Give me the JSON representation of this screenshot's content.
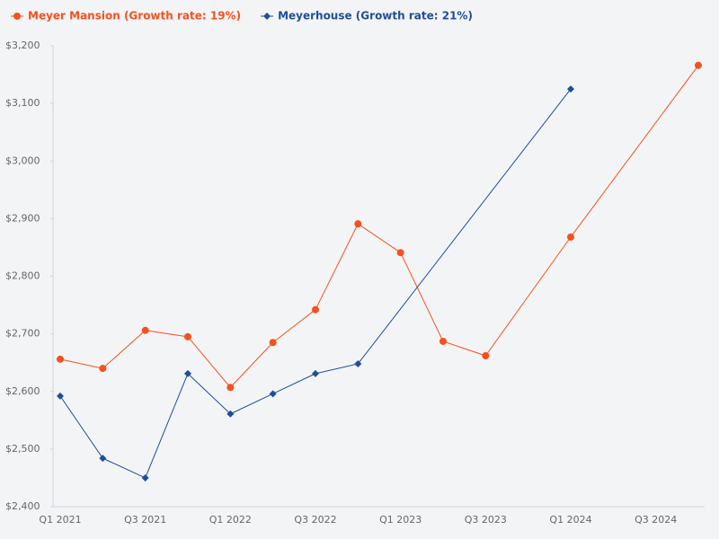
{
  "chart_data": {
    "type": "line",
    "categories": [
      "Q1 2021",
      null,
      "Q3 2021",
      null,
      "Q1 2022",
      null,
      "Q3 2022",
      null,
      "Q1 2023",
      null,
      "Q3 2023",
      null,
      "Q1 2024",
      null,
      "Q3 2024",
      null
    ],
    "series": [
      {
        "name": "Meyer Mansion (Growth rate: 19%)",
        "color": "#f4511e",
        "marker": "circle",
        "values": [
          2656,
          2640,
          2706,
          2695,
          2607,
          2685,
          2742,
          2891,
          2841,
          2687,
          2662,
          null,
          2868,
          null,
          null,
          3166
        ]
      },
      {
        "name": "Meyerhouse (Growth rate: 21%)",
        "color": "#1f4e99",
        "marker": "diamond",
        "values": [
          2592,
          2484,
          2450,
          2631,
          2561,
          2596,
          2631,
          2648,
          null,
          null,
          null,
          null,
          3125,
          null,
          null,
          null
        ]
      }
    ],
    "connect_gaps": true,
    "ylim": [
      2400,
      3200
    ],
    "yticks": [
      {
        "value": 2400,
        "label": "$2,400"
      },
      {
        "value": 2500,
        "label": "$2,500"
      },
      {
        "value": 2600,
        "label": "$2,600"
      },
      {
        "value": 2700,
        "label": "$2,700"
      },
      {
        "value": 2800,
        "label": "$2,800"
      },
      {
        "value": 2900,
        "label": "$2,900"
      },
      {
        "value": 3000,
        "label": "$3,000"
      },
      {
        "value": 3100,
        "label": "$3,100"
      },
      {
        "value": 3200,
        "label": "$3,200"
      }
    ],
    "grid": false
  }
}
